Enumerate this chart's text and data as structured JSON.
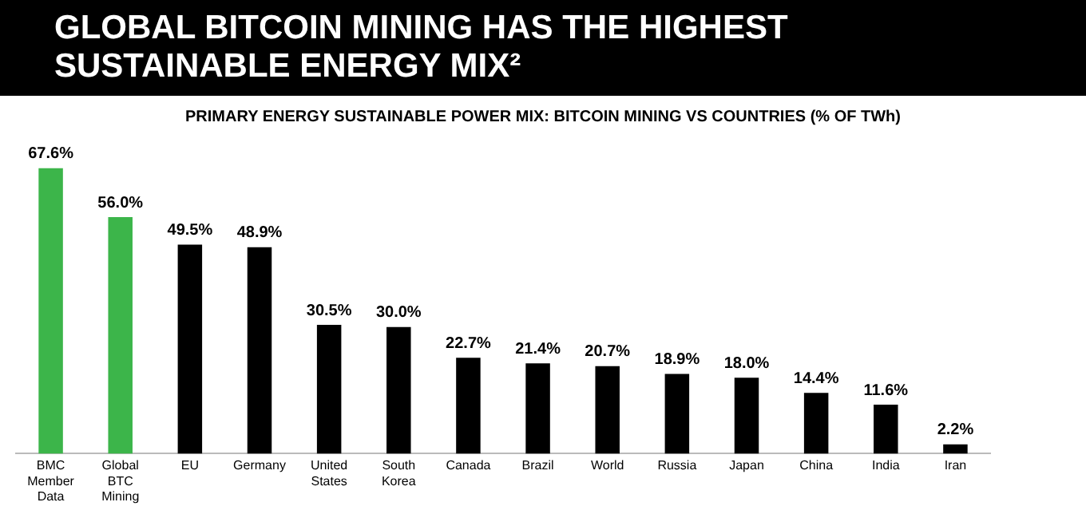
{
  "chart_data": {
    "type": "bar",
    "title": "GLOBAL BITCOIN MINING HAS THE HIGHEST SUSTAINABLE ENERGY MIX²",
    "subtitle": "PRIMARY ENERGY SUSTAINABLE POWER MIX: BITCOIN MINING VS COUNTRIES (% OF TWh)",
    "categories": [
      "BMC Member Data",
      "Global BTC Mining",
      "EU",
      "Germany",
      "United States",
      "South Korea",
      "Canada",
      "Brazil",
      "World",
      "Russia",
      "Japan",
      "China",
      "India",
      "Iran"
    ],
    "values": [
      67.6,
      56.0,
      49.5,
      48.9,
      30.5,
      30.0,
      22.7,
      21.4,
      20.7,
      18.9,
      18.0,
      14.4,
      11.6,
      2.2
    ],
    "value_labels": [
      "67.6%",
      "56.0%",
      "49.5%",
      "48.9%",
      "30.5%",
      "30.0%",
      "22.7%",
      "21.4%",
      "20.7%",
      "18.9%",
      "18.0%",
      "14.4%",
      "11.6%",
      "2.2%"
    ],
    "colors": [
      "#3cb54a",
      "#3cb54a",
      "#000000",
      "#000000",
      "#000000",
      "#000000",
      "#000000",
      "#000000",
      "#000000",
      "#000000",
      "#000000",
      "#000000",
      "#000000",
      "#000000"
    ],
    "grid": false,
    "legend": false
  }
}
